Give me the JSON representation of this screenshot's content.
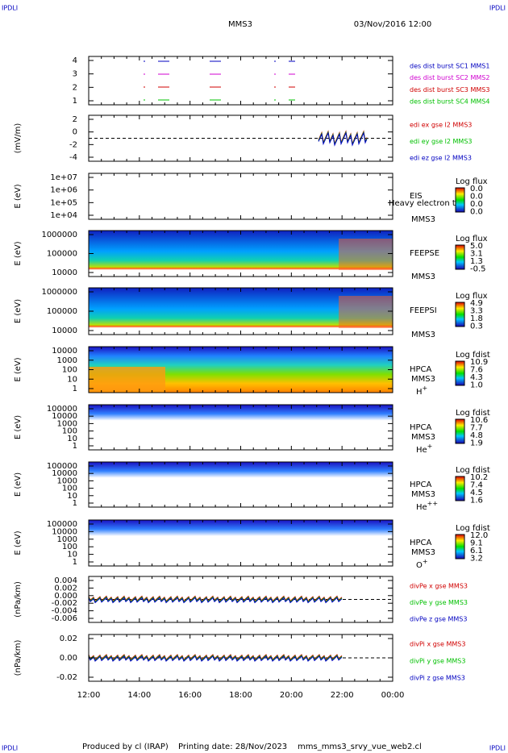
{
  "corner_labels": [
    "IPDLI",
    "IPDLI",
    "IPDLI",
    "IPDLI"
  ],
  "header": {
    "title": "MMS3",
    "date": "03/Nov/2016 12:00"
  },
  "panels": [
    {
      "yticks": [
        "4",
        "3",
        "2",
        "1"
      ],
      "legend": [
        "des dist burst SC1 MMS1",
        "des dist burst SC2 MMS2",
        "des dist burst SC3 MMS3",
        "des dist burst SC4 MMS4"
      ]
    },
    {
      "ylabel": "(mV/m)",
      "yticks": [
        "2",
        "0",
        "-2",
        "-4"
      ],
      "legend": [
        "edi ex gse l2 MMS3",
        "edi ey gse l2 MMS3",
        "edi ez gse l2 MMS3"
      ]
    },
    {
      "ylabel": "E (eV)",
      "yticks": [
        "1e+07",
        "1e+06",
        "1e+05",
        "1e+04"
      ],
      "instrument": "EIS",
      "spacecraft": "MMS3",
      "overlay": "Heavy electron to",
      "cbar_title": "Log flux",
      "cbar_values": [
        "0.0",
        "0.0",
        "0.0",
        "0.0"
      ]
    },
    {
      "ylabel": "E (eV)",
      "yticks": [
        "1000000",
        "100000",
        "10000"
      ],
      "instrument": "FEEPSE",
      "spacecraft": "MMS3",
      "cbar_title": "Log flux",
      "cbar_values": [
        "5.0",
        "3.1",
        "1.3",
        "-0.5"
      ]
    },
    {
      "ylabel": "E (eV)",
      "yticks": [
        "1000000",
        "100000",
        "10000"
      ],
      "instrument": "FEEPSI",
      "spacecraft": "MMS3",
      "cbar_title": "Log flux",
      "cbar_values": [
        "4.9",
        "3.3",
        "1.8",
        "0.3"
      ]
    },
    {
      "ylabel": "E (eV)",
      "yticks": [
        "10000",
        "1000",
        "100",
        "10",
        "1"
      ],
      "instrument": "HPCA",
      "spacecraft": "MMS3",
      "ion": "H",
      "charge": "+",
      "cbar_title": "Log fdist",
      "cbar_values": [
        "10.9",
        "7.6",
        "4.3",
        "1.0"
      ]
    },
    {
      "ylabel": "E (eV)",
      "yticks": [
        "100000",
        "10000",
        "1000",
        "100",
        "10",
        "1"
      ],
      "instrument": "HPCA",
      "spacecraft": "MMS3",
      "ion": "He",
      "charge": "+",
      "cbar_title": "Log fdist",
      "cbar_values": [
        "10.6",
        "7.7",
        "4.8",
        "1.9"
      ]
    },
    {
      "ylabel": "E (eV)",
      "yticks": [
        "100000",
        "10000",
        "1000",
        "100",
        "10",
        "1"
      ],
      "instrument": "HPCA",
      "spacecraft": "MMS3",
      "ion": "He",
      "charge": "++",
      "cbar_title": "Log fdist",
      "cbar_values": [
        "10.2",
        "7.4",
        "4.5",
        "1.6"
      ]
    },
    {
      "ylabel": "E (eV)",
      "yticks": [
        "100000",
        "10000",
        "1000",
        "100",
        "10",
        "1"
      ],
      "instrument": "HPCA",
      "spacecraft": "MMS3",
      "ion": "O",
      "charge": "+",
      "cbar_title": "Log fdist",
      "cbar_values": [
        "12.0",
        "9.1",
        "6.1",
        "3.2"
      ]
    },
    {
      "ylabel": "(nPa/km)",
      "yticks": [
        "0.004",
        "0.002",
        "0.000",
        "-0.002",
        "-0.004",
        "-0.006"
      ],
      "legend": [
        "divPe x gse MMS3",
        "divPe y gse MMS3",
        "divPe z gse MMS3"
      ]
    },
    {
      "ylabel": "(nPa/km)",
      "yticks": [
        "0.02",
        "0.00",
        "-0.02"
      ],
      "legend": [
        "divPi x gse MMS3",
        "divPi y gse MMS3",
        "divPi z gse MMS3"
      ]
    }
  ],
  "xticks": [
    "12:00",
    "14:00",
    "16:00",
    "18:00",
    "20:00",
    "22:00",
    "00:00"
  ],
  "footer": [
    "Produced by cl (IRAP)",
    "Printing date: 28/Nov/2023",
    "mms_mms3_srvy_vue_web2.cl"
  ]
}
